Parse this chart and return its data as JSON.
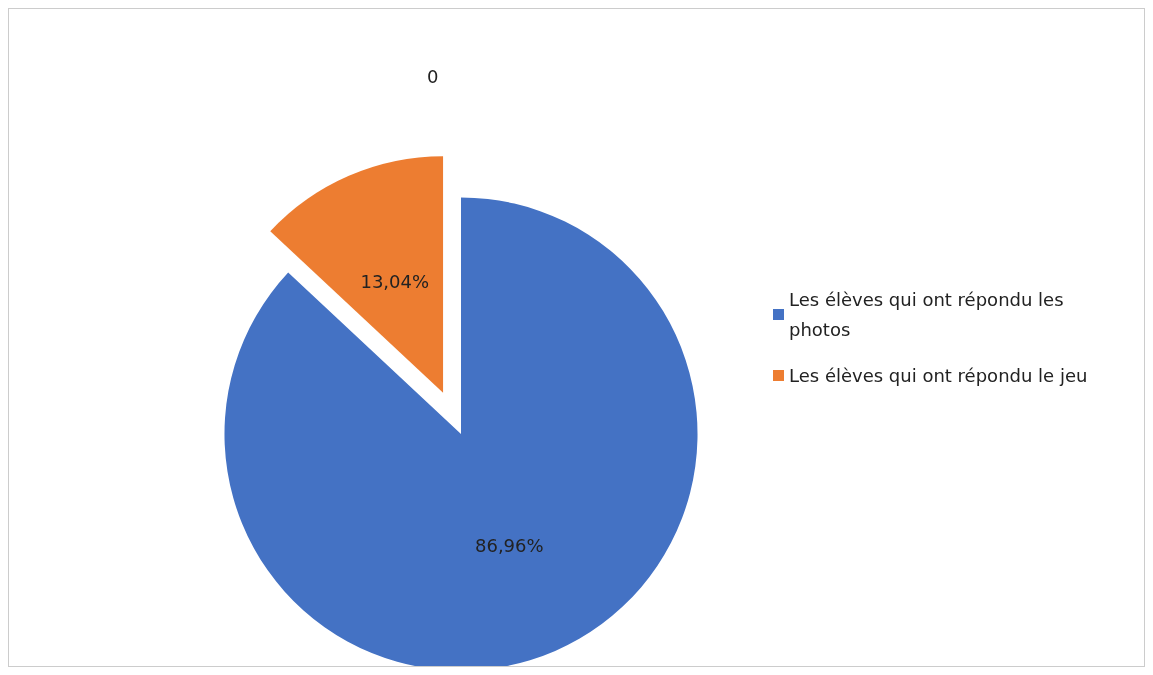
{
  "chart_data": {
    "type": "pie",
    "categories": [
      "Les élèves qui ont répondu les photos",
      "Les élèves qui ont répondu le jeu"
    ],
    "values": [
      86.96,
      13.04
    ],
    "colors": [
      "#4472c4",
      "#ed7d31"
    ],
    "value_labels": [
      "86,96%",
      "13,04%"
    ],
    "annotations": [
      "0"
    ],
    "legend": "right"
  }
}
